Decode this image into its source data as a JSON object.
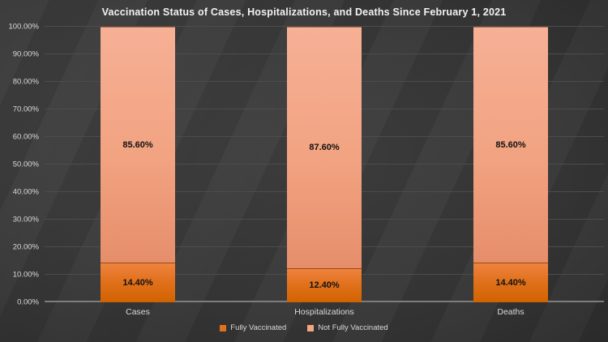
{
  "slide": {
    "title": "Vaccination Status of Cases, Hospitalizations, and Deaths Since February 1, 2021"
  },
  "chart_data": {
    "type": "bar",
    "stacked": true,
    "title": "Vaccination Status of Cases, Hospitalizations, and Deaths Since February 1, 2021",
    "categories": [
      "Cases",
      "Hospitalizations",
      "Deaths"
    ],
    "series": [
      {
        "name": "Fully Vaccinated",
        "color": "#E2711D",
        "values": [
          14.4,
          12.4,
          14.4
        ],
        "labels": [
          "14.40%",
          "12.40%",
          "14.40%"
        ]
      },
      {
        "name": "Not Fully Vaccinated",
        "color": "#F4A583",
        "values": [
          85.6,
          87.6,
          85.6
        ],
        "labels": [
          "85.60%",
          "87.60%",
          "85.60%"
        ]
      }
    ],
    "xlabel": "",
    "ylabel": "",
    "ylim": [
      0,
      100
    ],
    "y_tick_values": [
      0,
      10,
      20,
      30,
      40,
      50,
      60,
      70,
      80,
      90,
      100
    ],
    "y_tick_labels": [
      "0.00%",
      "10.00%",
      "20.00%",
      "30.00%",
      "40.00%",
      "50.00%",
      "60.00%",
      "70.00%",
      "80.00%",
      "90.00%",
      "100.00%"
    ],
    "grid": "horizontal",
    "legend_position": "bottom"
  },
  "colors": {
    "background": "#3A3A3A",
    "title_text": "#F2F2F2",
    "axis_text": "#D9D9D9",
    "gridline": "#4C4C4C",
    "axis_line": "#7D7D7D",
    "fully_vaccinated": "#E2711D",
    "not_fully_vaccinated": "#F4A583",
    "data_label": "#111111"
  }
}
